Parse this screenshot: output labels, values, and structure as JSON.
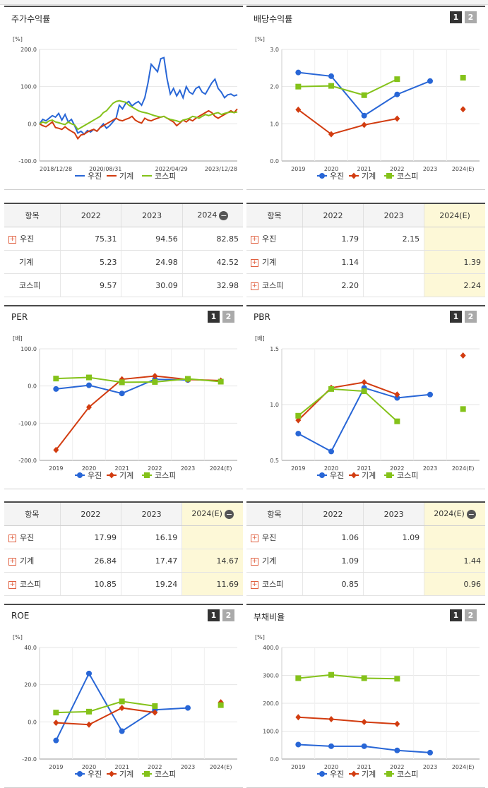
{
  "colors": {
    "woojin": "#2866d6",
    "machine": "#d23c10",
    "kospi": "#84c21a",
    "highlight": "#fdf8d7"
  },
  "legend": [
    "우진",
    "기계",
    "코스피"
  ],
  "pages": [
    "1",
    "2"
  ],
  "chart_data": [
    {
      "id": "stock",
      "type": "line",
      "title": "주가수익률",
      "unit": "[%]",
      "x_ticks": [
        "2018/12/28",
        "2020/08/31",
        "2022/04/29",
        "2023/12/28"
      ],
      "ylim": [
        -100,
        200
      ],
      "y_ticks": [
        "-100.0",
        "0.0",
        "100.0",
        "200.0"
      ],
      "series": [
        {
          "name": "우진",
          "values": [
            0,
            12,
            8,
            15,
            22,
            18,
            28,
            10,
            25,
            5,
            12,
            -5,
            -25,
            -20,
            -28,
            -18,
            -22,
            -15,
            -20,
            -10,
            0,
            -12,
            -5,
            5,
            15,
            50,
            40,
            55,
            60,
            48,
            55,
            60,
            50,
            70,
            110,
            160,
            150,
            140,
            175,
            178,
            120,
            80,
            95,
            75,
            90,
            70,
            100,
            85,
            80,
            95,
            100,
            85,
            80,
            95,
            110,
            120,
            95,
            85,
            70,
            78,
            80,
            75,
            78
          ]
        },
        {
          "name": "기계",
          "values": [
            0,
            -5,
            -8,
            -2,
            5,
            -10,
            -12,
            -15,
            -8,
            -15,
            -20,
            -25,
            -40,
            -30,
            -28,
            -22,
            -18,
            -15,
            -20,
            -10,
            -5,
            0,
            5,
            10,
            15,
            10,
            8,
            12,
            15,
            20,
            10,
            5,
            2,
            15,
            10,
            8,
            12,
            15,
            18,
            20,
            15,
            10,
            5,
            -5,
            2,
            10,
            5,
            12,
            8,
            15,
            20,
            25,
            30,
            35,
            30,
            20,
            15,
            20,
            25,
            30,
            35,
            30,
            40
          ]
        },
        {
          "name": "코스피",
          "values": [
            0,
            5,
            2,
            8,
            10,
            5,
            3,
            0,
            -2,
            5,
            0,
            -3,
            -15,
            -10,
            -5,
            0,
            5,
            10,
            15,
            20,
            30,
            35,
            45,
            55,
            60,
            62,
            60,
            58,
            50,
            45,
            40,
            35,
            32,
            30,
            28,
            25,
            22,
            20,
            18,
            20,
            15,
            12,
            10,
            8,
            5,
            10,
            12,
            15,
            20,
            18,
            15,
            20,
            25,
            22,
            25,
            28,
            30,
            25,
            28,
            30,
            32,
            30,
            32
          ]
        }
      ]
    },
    {
      "id": "dividend",
      "type": "line",
      "title": "배당수익률",
      "unit": "[%]",
      "categories": [
        "2019",
        "2020",
        "2021",
        "2022",
        "2023",
        "2024(E)"
      ],
      "ylim": [
        0,
        3
      ],
      "y_ticks": [
        "0.0",
        "1.0",
        "2.0",
        "3.0"
      ],
      "series": [
        {
          "name": "우진",
          "values": [
            2.38,
            2.28,
            1.22,
            1.79,
            2.15,
            null
          ]
        },
        {
          "name": "기계",
          "values": [
            1.38,
            0.72,
            0.97,
            1.14,
            null,
            1.39
          ]
        },
        {
          "name": "코스피",
          "values": [
            2.0,
            2.02,
            1.77,
            2.2,
            null,
            2.24
          ]
        }
      ]
    },
    {
      "id": "per",
      "type": "line",
      "title": "PER",
      "unit": "[배]",
      "categories": [
        "2019",
        "2020",
        "2021",
        "2022",
        "2023",
        "2024(E)"
      ],
      "ylim": [
        -200,
        100
      ],
      "y_ticks": [
        "-200.0",
        "-100.0",
        "0.0",
        "100.0"
      ],
      "series": [
        {
          "name": "우진",
          "values": [
            -8,
            2,
            -20,
            17.99,
            16.19,
            null
          ]
        },
        {
          "name": "기계",
          "values": [
            -172,
            -57,
            18,
            26.84,
            17.47,
            14.67
          ]
        },
        {
          "name": "코스피",
          "values": [
            20,
            23,
            10,
            10.85,
            19.24,
            11.69
          ]
        }
      ]
    },
    {
      "id": "pbr",
      "type": "line",
      "title": "PBR",
      "unit": "[배]",
      "categories": [
        "2019",
        "2020",
        "2021",
        "2022",
        "2023",
        "2024(E)"
      ],
      "ylim": [
        0.5,
        1.5
      ],
      "y_ticks": [
        "0.5",
        "1.0",
        "1.5"
      ],
      "series": [
        {
          "name": "우진",
          "values": [
            0.74,
            0.58,
            1.15,
            1.06,
            1.09,
            null
          ]
        },
        {
          "name": "기계",
          "values": [
            0.86,
            1.15,
            1.2,
            1.09,
            null,
            1.44
          ]
        },
        {
          "name": "코스피",
          "values": [
            0.9,
            1.14,
            1.12,
            0.85,
            null,
            0.96
          ]
        }
      ]
    },
    {
      "id": "roe",
      "type": "line",
      "title": "ROE",
      "unit": "[%]",
      "categories": [
        "2019",
        "2020",
        "2021",
        "2022",
        "2023",
        "2024(E)"
      ],
      "ylim": [
        -20,
        40
      ],
      "y_ticks": [
        "-20.0",
        "0.0",
        "20.0",
        "40.0"
      ],
      "series": [
        {
          "name": "우진",
          "values": [
            -10,
            26,
            -5,
            6.5,
            7.5,
            null
          ]
        },
        {
          "name": "기계",
          "values": [
            -0.5,
            -1.5,
            7.5,
            5,
            null,
            10.5
          ]
        },
        {
          "name": "코스피",
          "values": [
            5,
            5.5,
            11,
            8.5,
            null,
            9
          ]
        }
      ]
    },
    {
      "id": "debt",
      "type": "line",
      "title": "부채비율",
      "unit": "[%]",
      "categories": [
        "2019",
        "2020",
        "2021",
        "2022",
        "2023",
        "2024(E)"
      ],
      "ylim": [
        0,
        400
      ],
      "y_ticks": [
        "0.0",
        "100.0",
        "200.0",
        "300.0",
        "400.0"
      ],
      "series": [
        {
          "name": "우진",
          "values": [
            52,
            46,
            46,
            31,
            23,
            null
          ]
        },
        {
          "name": "기계",
          "values": [
            150,
            143,
            133,
            126,
            null,
            null
          ]
        },
        {
          "name": "코스피",
          "values": [
            290,
            302,
            290,
            288,
            null,
            null
          ]
        }
      ]
    }
  ],
  "tables": [
    {
      "id": "t_stock",
      "headers": [
        "항목",
        "2022",
        "2023",
        "2024"
      ],
      "minus": "−",
      "hlcol": -1,
      "rows": [
        {
          "label": "우진",
          "plus": true,
          "cells": [
            "75.31",
            "94.56",
            "82.85"
          ]
        },
        {
          "label": "기계",
          "plus": false,
          "cells": [
            "5.23",
            "24.98",
            "42.52"
          ]
        },
        {
          "label": "코스피",
          "plus": false,
          "cells": [
            "9.57",
            "30.09",
            "32.98"
          ]
        }
      ]
    },
    {
      "id": "t_div",
      "headers": [
        "항목",
        "2022",
        "2023",
        "2024(E)"
      ],
      "minus": "",
      "hlcol": 2,
      "rows": [
        {
          "label": "우진",
          "plus": true,
          "cells": [
            "1.79",
            "2.15",
            ""
          ]
        },
        {
          "label": "기계",
          "plus": true,
          "cells": [
            "1.14",
            "",
            "1.39"
          ]
        },
        {
          "label": "코스피",
          "plus": true,
          "cells": [
            "2.20",
            "",
            "2.24"
          ]
        }
      ]
    },
    {
      "id": "t_per",
      "headers": [
        "항목",
        "2022",
        "2023",
        "2024(E)"
      ],
      "minus": "−",
      "hlcol": 2,
      "rows": [
        {
          "label": "우진",
          "plus": true,
          "cells": [
            "17.99",
            "16.19",
            ""
          ]
        },
        {
          "label": "기계",
          "plus": true,
          "cells": [
            "26.84",
            "17.47",
            "14.67"
          ]
        },
        {
          "label": "코스피",
          "plus": true,
          "cells": [
            "10.85",
            "19.24",
            "11.69"
          ]
        }
      ]
    },
    {
      "id": "t_pbr",
      "headers": [
        "항목",
        "2022",
        "2023",
        "2024(E)"
      ],
      "minus": "−",
      "hlcol": 2,
      "rows": [
        {
          "label": "우진",
          "plus": true,
          "cells": [
            "1.06",
            "1.09",
            ""
          ]
        },
        {
          "label": "기계",
          "plus": true,
          "cells": [
            "1.09",
            "",
            "1.44"
          ]
        },
        {
          "label": "코스피",
          "plus": true,
          "cells": [
            "0.85",
            "",
            "0.96"
          ]
        }
      ]
    }
  ]
}
